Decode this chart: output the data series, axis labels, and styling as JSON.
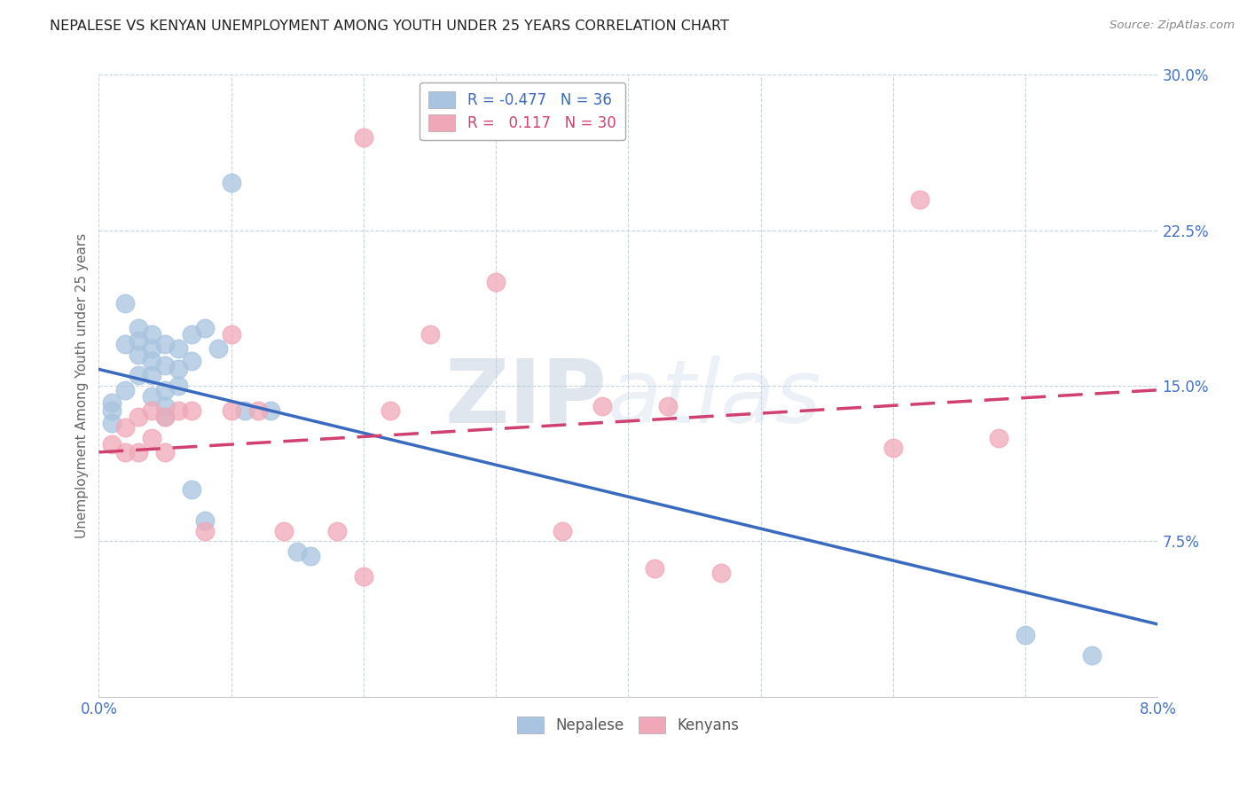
{
  "title": "NEPALESE VS KENYAN UNEMPLOYMENT AMONG YOUTH UNDER 25 YEARS CORRELATION CHART",
  "source": "Source: ZipAtlas.com",
  "ylabel": "Unemployment Among Youth under 25 years",
  "xlim": [
    0.0,
    0.08
  ],
  "ylim": [
    0.0,
    0.3
  ],
  "yticks": [
    0.0,
    0.075,
    0.15,
    0.225,
    0.3
  ],
  "ytick_labels": [
    "",
    "7.5%",
    "15.0%",
    "22.5%",
    "30.0%"
  ],
  "xticks": [
    0.0,
    0.01,
    0.02,
    0.03,
    0.04,
    0.05,
    0.06,
    0.07,
    0.08
  ],
  "nepalese_color": "#a8c4e0",
  "kenyan_color": "#f0a8b8",
  "line_nepalese_color": "#3a6abf",
  "line_kenyan_color": "#d04070",
  "watermark_color": "#ccd8e8",
  "background_color": "#ffffff",
  "grid_color": "#c8d4dc",
  "nepalese_x": [
    0.001,
    0.001,
    0.001,
    0.002,
    0.002,
    0.002,
    0.003,
    0.003,
    0.003,
    0.003,
    0.004,
    0.004,
    0.004,
    0.004,
    0.004,
    0.005,
    0.005,
    0.005,
    0.005,
    0.005,
    0.006,
    0.006,
    0.006,
    0.007,
    0.007,
    0.007,
    0.008,
    0.008,
    0.009,
    0.01,
    0.011,
    0.013,
    0.015,
    0.016,
    0.07,
    0.075
  ],
  "nepalese_y": [
    0.142,
    0.138,
    0.132,
    0.19,
    0.17,
    0.148,
    0.178,
    0.172,
    0.165,
    0.155,
    0.175,
    0.168,
    0.162,
    0.155,
    0.145,
    0.17,
    0.16,
    0.148,
    0.14,
    0.135,
    0.168,
    0.158,
    0.15,
    0.175,
    0.162,
    0.1,
    0.178,
    0.085,
    0.168,
    0.248,
    0.138,
    0.138,
    0.07,
    0.068,
    0.03,
    0.02
  ],
  "kenyan_x": [
    0.001,
    0.002,
    0.002,
    0.003,
    0.003,
    0.004,
    0.004,
    0.005,
    0.005,
    0.006,
    0.007,
    0.008,
    0.01,
    0.01,
    0.012,
    0.014,
    0.018,
    0.02,
    0.02,
    0.022,
    0.025,
    0.03,
    0.035,
    0.038,
    0.042,
    0.043,
    0.047,
    0.06,
    0.062,
    0.068
  ],
  "kenyan_y": [
    0.122,
    0.13,
    0.118,
    0.135,
    0.118,
    0.138,
    0.125,
    0.135,
    0.118,
    0.138,
    0.138,
    0.08,
    0.175,
    0.138,
    0.138,
    0.08,
    0.08,
    0.27,
    0.058,
    0.138,
    0.175,
    0.2,
    0.08,
    0.14,
    0.062,
    0.14,
    0.06,
    0.12,
    0.24,
    0.125
  ],
  "line_nep_x0": 0.0,
  "line_nep_y0": 0.158,
  "line_nep_x1": 0.08,
  "line_nep_y1": 0.035,
  "line_ken_x0": 0.0,
  "line_ken_y0": 0.118,
  "line_ken_x1": 0.08,
  "line_ken_y1": 0.148
}
